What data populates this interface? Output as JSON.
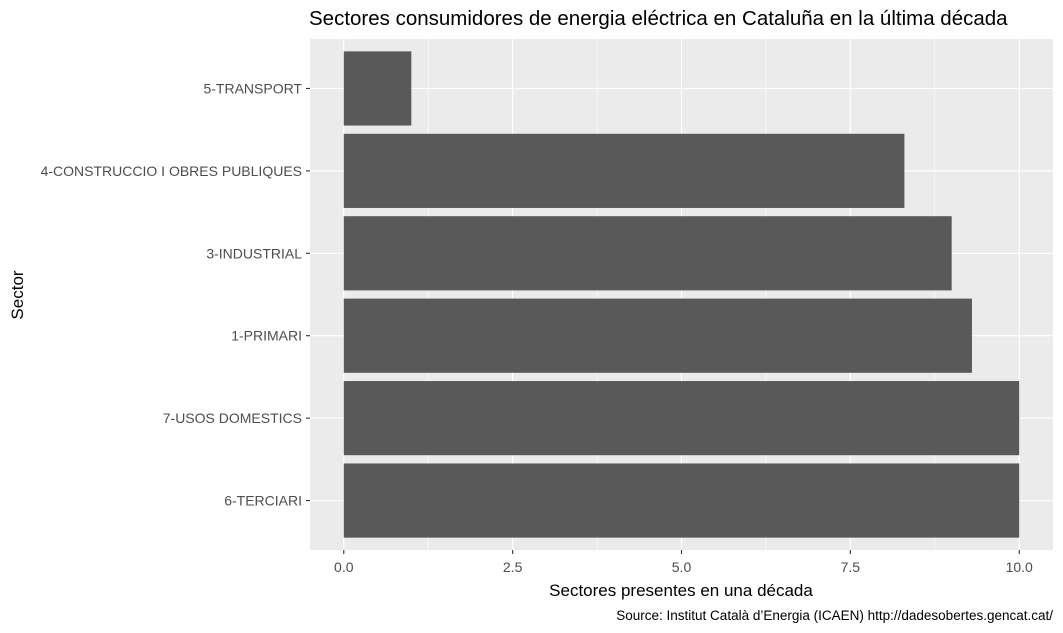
{
  "chart_data": {
    "type": "bar",
    "orientation": "horizontal",
    "title": "Sectores consumidores de energia eléctrica en Cataluña en la última década",
    "xlabel": "Sectores presentes en una década",
    "ylabel": "Sector",
    "caption": "Source: Institut Català d’Energia (ICAEN) http://dadesobertes.gencat.cat/",
    "categories": [
      "6-TERCIARI",
      "7-USOS DOMESTICS",
      "1-PRIMARI",
      "3-INDUSTRIAL",
      "4-CONSTRUCCIO I OBRES PUBLIQUES",
      "5-TRANSPORT"
    ],
    "values": [
      10,
      10,
      9.3,
      9,
      8.3,
      1
    ],
    "xlim": [
      -0.5,
      10.5
    ],
    "xticks": [
      0,
      2.5,
      5,
      7.5,
      10
    ],
    "xtick_labels": [
      "0.0",
      "2.5",
      "5.0",
      "7.5",
      "10.0"
    ],
    "grid": true,
    "colors": {
      "bar": "#595959",
      "panel": "#ebebeb",
      "grid": "#ffffff"
    }
  }
}
